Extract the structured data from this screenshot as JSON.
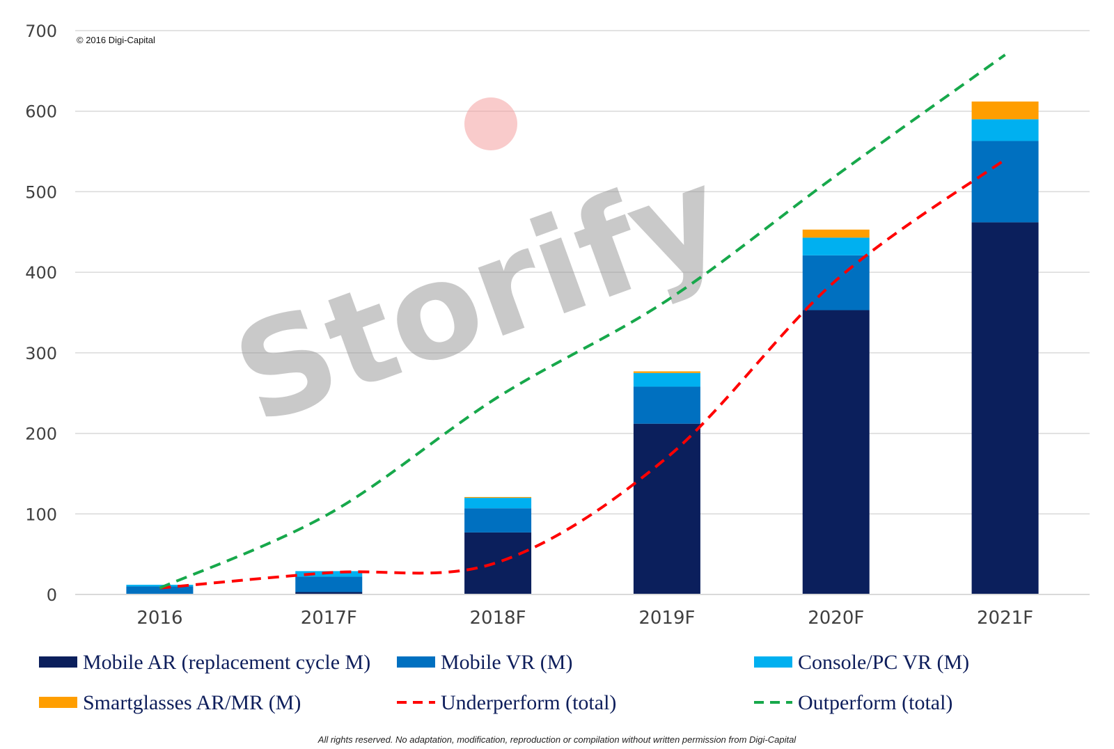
{
  "chart_data": {
    "type": "bar",
    "stacked": true,
    "categories": [
      "2016",
      "2017F",
      "2018F",
      "2019F",
      "2020F",
      "2021F"
    ],
    "series": [
      {
        "name": "Mobile AR (replacement cycle M)",
        "color": "#0b1f5c",
        "values": [
          0,
          3,
          77,
          212,
          353,
          462
        ]
      },
      {
        "name": "Mobile VR (M)",
        "color": "#0070c0",
        "values": [
          10,
          19,
          30,
          46,
          68,
          101
        ]
      },
      {
        "name": "Console/PC VR (M)",
        "color": "#00b0f0",
        "values": [
          2,
          7,
          13,
          17,
          22,
          27
        ]
      },
      {
        "name": "Smartglasses AR/MR (M)",
        "color": "#ff9e00",
        "values": [
          0,
          0,
          1,
          2,
          10,
          22
        ]
      }
    ],
    "lines": [
      {
        "name": "Underperform (total)",
        "color": "#ff0000",
        "dashed": true,
        "values": [
          8,
          27,
          40,
          170,
          390,
          540
        ]
      },
      {
        "name": "Outperform (total)",
        "color": "#17a84b",
        "dashed": true,
        "values": [
          8,
          100,
          245,
          365,
          520,
          670
        ]
      }
    ],
    "ylim": [
      0,
      700
    ],
    "yticks": [
      "0",
      "100",
      "200",
      "300",
      "400",
      "500",
      "600",
      "700"
    ],
    "ytick_values": [
      0,
      100,
      200,
      300,
      400,
      500,
      600,
      700
    ],
    "grid": true,
    "legend_position": "bottom",
    "title": "",
    "xlabel": "",
    "ylabel": ""
  },
  "copyright": "© 2016 Digi-Capital",
  "watermark": "Storify",
  "footer": "All rights reserved. No adaptation, modification, reproduction or compilation without written permission from Digi-Capital"
}
